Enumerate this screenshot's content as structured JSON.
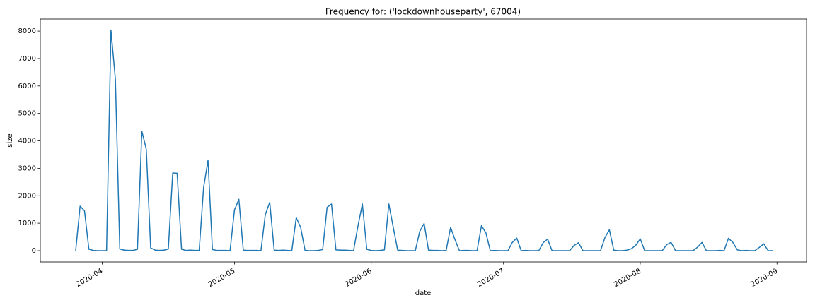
{
  "chart_data": {
    "type": "line",
    "title": "Frequency for: ('lockdownhouseparty', 67004)",
    "x_label": "date",
    "y_label": "size",
    "color": "#1f77b4",
    "grid": false,
    "ylim": [
      -412,
      8440
    ],
    "yticks": [
      0,
      1000,
      2000,
      3000,
      4000,
      5000,
      6000,
      7000,
      8000
    ],
    "categories": [
      null,
      null,
      null,
      null,
      null,
      null,
      "2020-04",
      null,
      null,
      null,
      null,
      null,
      null,
      null,
      null,
      null,
      null,
      null,
      null,
      null,
      null,
      null,
      null,
      null,
      null,
      null,
      null,
      null,
      null,
      null,
      null,
      null,
      null,
      null,
      null,
      null,
      "2020-05",
      null,
      null,
      null,
      null,
      null,
      null,
      null,
      null,
      null,
      null,
      null,
      null,
      null,
      null,
      null,
      null,
      null,
      null,
      null,
      null,
      null,
      null,
      null,
      null,
      null,
      null,
      null,
      null,
      null,
      null,
      "2020-06",
      null,
      null,
      null,
      null,
      null,
      null,
      null,
      null,
      null,
      null,
      null,
      null,
      null,
      null,
      null,
      null,
      null,
      null,
      null,
      null,
      null,
      null,
      null,
      null,
      null,
      null,
      null,
      null,
      null,
      "2020-07",
      null,
      null,
      null,
      null,
      null,
      null,
      null,
      null,
      null,
      null,
      null,
      null,
      null,
      null,
      null,
      null,
      null,
      null,
      null,
      null,
      null,
      null,
      null,
      null,
      null,
      null,
      null,
      null,
      null,
      null,
      "2020-08",
      null,
      null,
      null,
      null,
      null,
      null,
      null,
      null,
      null,
      null,
      null,
      null,
      null,
      null,
      null,
      null,
      null,
      null,
      null,
      null,
      null,
      null,
      null,
      null,
      null,
      null,
      null,
      null,
      null,
      null,
      "2020-09"
    ],
    "values": [
      0,
      1620,
      1450,
      50,
      10,
      0,
      0,
      0,
      8030,
      6250,
      60,
      20,
      10,
      10,
      50,
      4350,
      3700,
      100,
      20,
      10,
      20,
      60,
      2830,
      2820,
      50,
      10,
      20,
      10,
      10,
      2300,
      3290,
      40,
      10,
      10,
      10,
      0,
      1480,
      1870,
      20,
      10,
      10,
      10,
      0,
      1320,
      1760,
      20,
      10,
      20,
      10,
      0,
      1200,
      850,
      10,
      0,
      0,
      10,
      40,
      1580,
      1700,
      30,
      20,
      20,
      10,
      0,
      900,
      1700,
      50,
      10,
      0,
      10,
      30,
      1700,
      850,
      20,
      10,
      0,
      0,
      0,
      700,
      990,
      20,
      10,
      10,
      0,
      10,
      850,
      400,
      0,
      10,
      10,
      0,
      0,
      910,
      650,
      0,
      10,
      0,
      0,
      0,
      300,
      460,
      0,
      10,
      0,
      0,
      0,
      290,
      420,
      0,
      0,
      0,
      0,
      0,
      190,
      290,
      0,
      0,
      0,
      0,
      0,
      480,
      760,
      20,
      0,
      0,
      20,
      70,
      200,
      430,
      0,
      0,
      0,
      0,
      0,
      220,
      300,
      0,
      0,
      0,
      0,
      0,
      130,
      300,
      0,
      0,
      0,
      10,
      0,
      450,
      300,
      30,
      0,
      10,
      0,
      0,
      120,
      250,
      0,
      0,
      null
    ]
  }
}
